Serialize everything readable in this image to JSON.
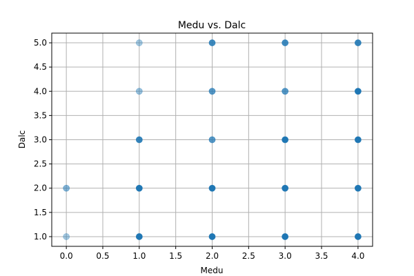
{
  "chart_data": {
    "type": "scatter",
    "title": "Medu vs. Dalc",
    "xlabel": "Medu",
    "ylabel": "Dalc",
    "xlim": [
      -0.2,
      4.2
    ],
    "ylim": [
      0.8,
      5.2
    ],
    "xticks": [
      0.0,
      0.5,
      1.0,
      1.5,
      2.0,
      2.5,
      3.0,
      3.5,
      4.0
    ],
    "yticks": [
      1.0,
      1.5,
      2.0,
      2.5,
      3.0,
      3.5,
      4.0,
      4.5,
      5.0
    ],
    "xtick_labels": [
      "0.0",
      "0.5",
      "1.0",
      "1.5",
      "2.0",
      "2.5",
      "3.0",
      "3.5",
      "4.0"
    ],
    "ytick_labels": [
      "1.0",
      "1.5",
      "2.0",
      "2.5",
      "3.0",
      "3.5",
      "4.0",
      "4.5",
      "5.0"
    ],
    "grid": true,
    "point_color": "#1f77b4",
    "points": [
      {
        "x": 0,
        "y": 1,
        "weight": 0.4
      },
      {
        "x": 0,
        "y": 2,
        "weight": 0.55
      },
      {
        "x": 1,
        "y": 1,
        "weight": 1.0
      },
      {
        "x": 1,
        "y": 2,
        "weight": 1.0
      },
      {
        "x": 1,
        "y": 3,
        "weight": 0.9
      },
      {
        "x": 1,
        "y": 4,
        "weight": 0.45
      },
      {
        "x": 1,
        "y": 5,
        "weight": 0.4
      },
      {
        "x": 2,
        "y": 1,
        "weight": 1.0
      },
      {
        "x": 2,
        "y": 2,
        "weight": 1.0
      },
      {
        "x": 2,
        "y": 3,
        "weight": 0.75
      },
      {
        "x": 2,
        "y": 4,
        "weight": 0.75
      },
      {
        "x": 2,
        "y": 5,
        "weight": 0.85
      },
      {
        "x": 3,
        "y": 1,
        "weight": 1.0
      },
      {
        "x": 3,
        "y": 2,
        "weight": 1.0
      },
      {
        "x": 3,
        "y": 3,
        "weight": 1.0
      },
      {
        "x": 3,
        "y": 4,
        "weight": 0.75
      },
      {
        "x": 3,
        "y": 5,
        "weight": 0.85
      },
      {
        "x": 4,
        "y": 1,
        "weight": 1.0
      },
      {
        "x": 4,
        "y": 2,
        "weight": 1.0
      },
      {
        "x": 4,
        "y": 3,
        "weight": 1.0
      },
      {
        "x": 4,
        "y": 4,
        "weight": 1.0
      },
      {
        "x": 4,
        "y": 5,
        "weight": 0.9
      }
    ]
  }
}
